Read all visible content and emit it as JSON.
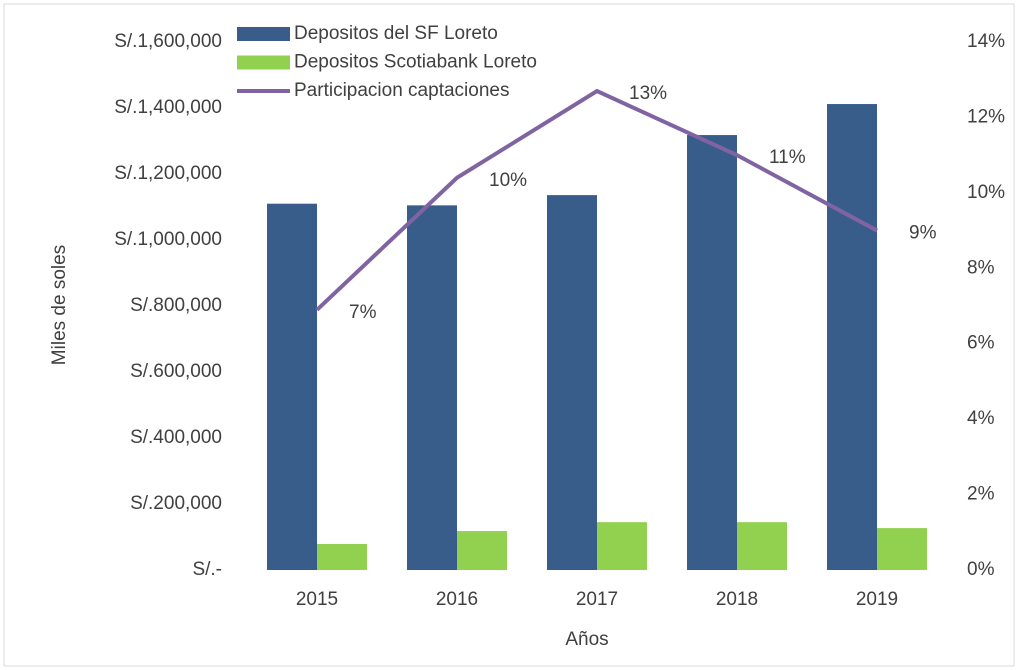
{
  "chart_data": {
    "type": "bar",
    "categories": [
      "2015",
      "2016",
      "2017",
      "2018",
      "2019"
    ],
    "series": [
      {
        "name": "Depositos del SF Loreto",
        "color": "#385d8a",
        "values": [
          1110000,
          1105000,
          1136000,
          1318000,
          1412000
        ]
      },
      {
        "name": "Depositos Scotiabank Loreto",
        "color": "#92d050",
        "values": [
          79000,
          118000,
          145000,
          145000,
          127000
        ]
      },
      {
        "name": "Participacion captaciones",
        "type": "line",
        "axis": "y2",
        "color": "#8064a2",
        "values": [
          6.9,
          10.4,
          12.7,
          11,
          9
        ],
        "value_labels": [
          "7%",
          "10%",
          "13%",
          "11%",
          "9%"
        ]
      }
    ],
    "ylabel": "Miles de soles",
    "xlabel": "Años",
    "ylim": [
      0,
      1600000
    ],
    "yticks": [
      {
        "value": 0,
        "label": "S/.-"
      },
      {
        "value": 200000,
        "label": "S/.200,000"
      },
      {
        "value": 400000,
        "label": "S/.400,000"
      },
      {
        "value": 600000,
        "label": "S/.600,000"
      },
      {
        "value": 800000,
        "label": "S/.800,000"
      },
      {
        "value": 1000000,
        "label": "S/.1,000,000"
      },
      {
        "value": 1200000,
        "label": "S/.1,200,000"
      },
      {
        "value": 1400000,
        "label": "S/.1,400,000"
      },
      {
        "value": 1600000,
        "label": "S/.1,600,000"
      }
    ],
    "y2lim": [
      0,
      14
    ],
    "y2ticks": [
      {
        "value": 0,
        "label": "0%"
      },
      {
        "value": 2,
        "label": "2%"
      },
      {
        "value": 4,
        "label": "4%"
      },
      {
        "value": 6,
        "label": "6%"
      },
      {
        "value": 8,
        "label": "8%"
      },
      {
        "value": 10,
        "label": "10%"
      },
      {
        "value": 12,
        "label": "12%"
      },
      {
        "value": 14,
        "label": "14%"
      }
    ],
    "grid": false,
    "legend": "top"
  }
}
